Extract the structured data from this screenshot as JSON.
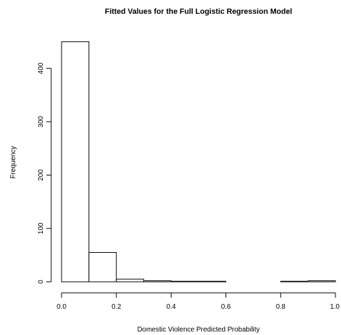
{
  "chart_data": {
    "type": "bar",
    "title": "Fitted Values for the Full Logistic Regression Model",
    "xlabel": "Domestic Violence Predicted Probability",
    "ylabel": "Frequency",
    "bins": [
      {
        "x0": 0.0,
        "x1": 0.1,
        "count": 450
      },
      {
        "x0": 0.1,
        "x1": 0.2,
        "count": 55
      },
      {
        "x0": 0.2,
        "x1": 0.3,
        "count": 5
      },
      {
        "x0": 0.3,
        "x1": 0.4,
        "count": 2
      },
      {
        "x0": 0.4,
        "x1": 0.5,
        "count": 1
      },
      {
        "x0": 0.5,
        "x1": 0.6,
        "count": 1
      },
      {
        "x0": 0.6,
        "x1": 0.7,
        "count": 0
      },
      {
        "x0": 0.7,
        "x1": 0.8,
        "count": 0
      },
      {
        "x0": 0.8,
        "x1": 0.9,
        "count": 1
      },
      {
        "x0": 0.9,
        "x1": 1.0,
        "count": 2
      }
    ],
    "xlim": [
      0,
      1
    ],
    "ylim": [
      0,
      450
    ],
    "xticks": [
      "0.0",
      "0.2",
      "0.4",
      "0.6",
      "0.8",
      "1.0"
    ],
    "xtick_values": [
      0,
      0.2,
      0.4,
      0.6,
      0.8,
      1.0
    ],
    "yticks": [
      "0",
      "100",
      "200",
      "300",
      "400"
    ],
    "ytick_values": [
      0,
      100,
      200,
      300,
      400
    ],
    "grid": false,
    "legend": "none"
  }
}
